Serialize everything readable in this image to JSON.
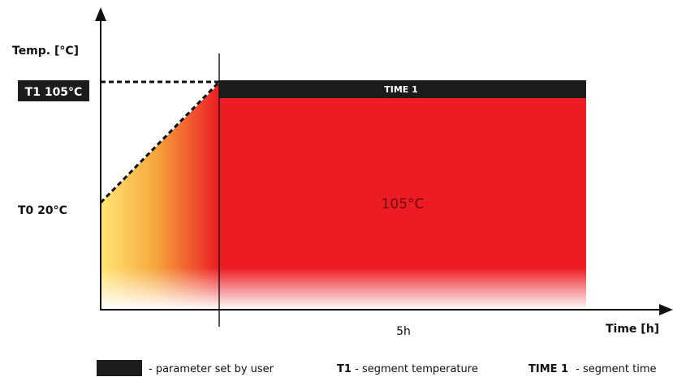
{
  "diagram": {
    "y_axis_label": "Temp. [°C]",
    "x_axis_label": "Time [h]",
    "t1_label": "T1 105°C",
    "t0_label": "T0 20°C",
    "time_bar_label": "TIME 1",
    "zone_label": "105°C",
    "duration_label": "5h",
    "colors": {
      "hold": "#ed1c24",
      "ramp_start": "#ffe675",
      "ramp_end": "#ed1c24",
      "user_param": "#1c1c1c"
    }
  },
  "legend": {
    "user_param_text": "- parameter set by user",
    "t1_key": "T1",
    "t1_text": " - segment temperature",
    "time_key": "TIME 1",
    "time_text": " - segment time"
  }
}
